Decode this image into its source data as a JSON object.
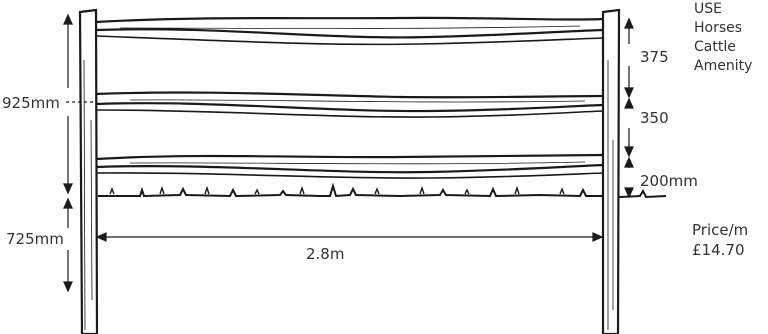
{
  "use_heading": "USE",
  "uses": [
    "Horses",
    "Cattle",
    "Amenity"
  ],
  "dimensions": {
    "total_height": "925mm",
    "below_ground": "725mm",
    "width": "2.8m",
    "gap_top": "375",
    "gap_middle": "350",
    "gap_bottom": "200mm"
  },
  "price": {
    "label": "Price/m",
    "value": "£14.70"
  },
  "colors": {
    "ink": "#1a1a1a",
    "text": "#333333"
  }
}
